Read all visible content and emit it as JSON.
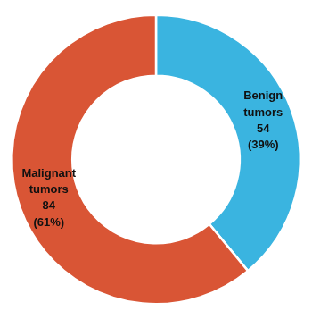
{
  "chart_data": {
    "type": "doughnut",
    "categories": [
      "Benign\ntumors",
      "Malignant\ntumors"
    ],
    "counts": [
      54,
      84
    ],
    "values": [
      39,
      61
    ],
    "value_labels": [
      "(39%)",
      "(61%)"
    ],
    "colors": [
      "#3ab4e0",
      "#d95535"
    ],
    "data_labels": true
  }
}
